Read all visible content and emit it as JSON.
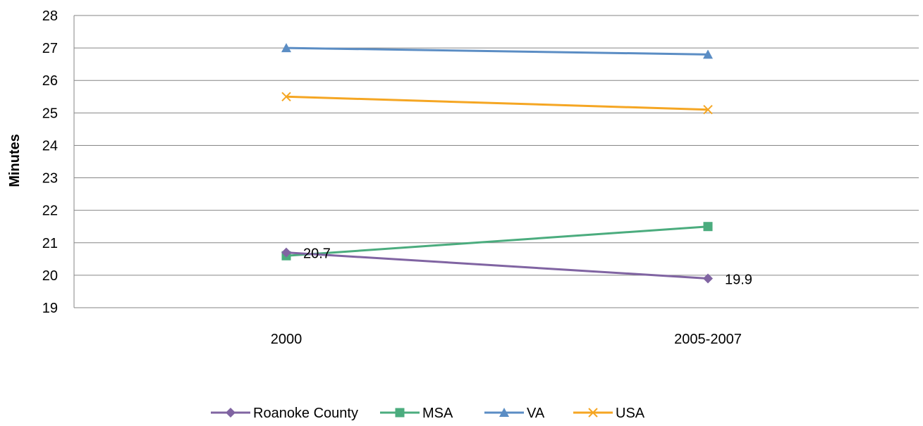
{
  "chart_data": {
    "type": "line",
    "title": "",
    "xlabel": "",
    "ylabel": "Minutes",
    "categories": [
      "2000",
      "2005-2007"
    ],
    "ylim": [
      19,
      28
    ],
    "yticks": [
      19,
      20,
      21,
      22,
      23,
      24,
      25,
      26,
      27,
      28
    ],
    "grid": "horizontal",
    "legend_position": "bottom",
    "series": [
      {
        "name": "Roanoke County",
        "values": [
          20.7,
          19.9
        ],
        "color": "#8064A2",
        "marker": "diamond",
        "labels": [
          "20.7",
          "19.9"
        ]
      },
      {
        "name": "MSA",
        "values": [
          20.6,
          21.5
        ],
        "color": "#4BAC7E",
        "marker": "square"
      },
      {
        "name": "VA",
        "values": [
          27.0,
          26.8
        ],
        "color": "#5B8DC4",
        "marker": "triangle"
      },
      {
        "name": "USA",
        "values": [
          25.5,
          25.1
        ],
        "color": "#F5A623",
        "marker": "x"
      }
    ]
  }
}
